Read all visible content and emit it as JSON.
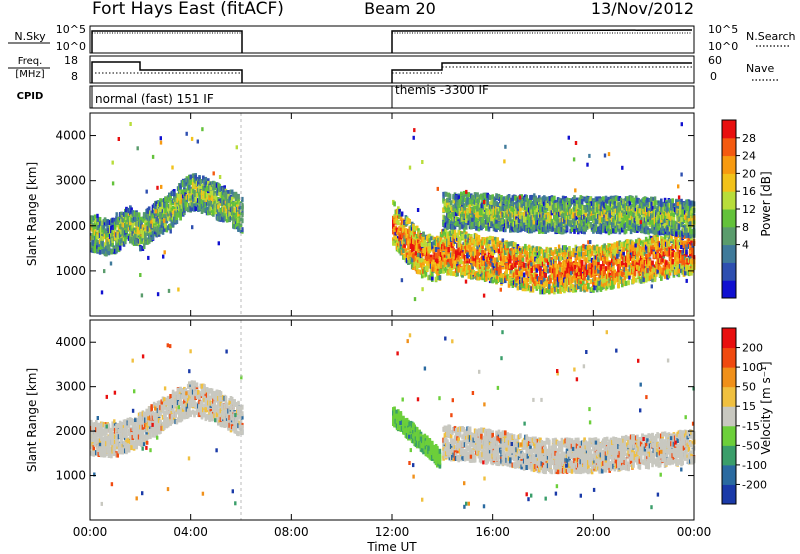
{
  "header": {
    "station": "Fort Hays East (fitACF)",
    "beam": "Beam 20",
    "date": "13/Nov/2012"
  },
  "nsky_panel": {
    "left_label": "N.Sky",
    "right_label": "N.Search",
    "left_ticks": [
      "10^5",
      "10^0"
    ],
    "right_ticks": [
      "10^5",
      "10^0"
    ]
  },
  "freq_panel": {
    "left_label_1": "Freq.",
    "left_label_2": "[MHz]",
    "right_label": "Nave",
    "left_ticks": [
      "18",
      "8"
    ],
    "right_ticks": [
      "60",
      "0"
    ]
  },
  "cpid_panel": {
    "label": "CPID",
    "modes": [
      "normal (fast) 151 IF",
      "themis -3300 IF"
    ]
  },
  "time_axis": {
    "title": "Time UT",
    "ticks": [
      "00:00",
      "04:00",
      "08:00",
      "12:00",
      "16:00",
      "20:00",
      "00:00"
    ]
  },
  "power_colorbar": {
    "title": "Power [dB]",
    "ticks": [
      "28",
      "24",
      "20",
      "16",
      "12",
      "8",
      "4"
    ],
    "colors": [
      "#1010d0",
      "#2e4fb0",
      "#3f7a9a",
      "#5a9c6c",
      "#63c23a",
      "#b8dd3a",
      "#f2c21a",
      "#f79a10",
      "#f45a10",
      "#e80f0f"
    ]
  },
  "velocity_colorbar": {
    "title": "Velocity [m s⁻¹]",
    "ticks": [
      "200",
      "100",
      "50",
      "15",
      "-15",
      "-50",
      "-100",
      "-200"
    ],
    "colors": [
      "#1a3aa8",
      "#2a6aa0",
      "#3a9e6a",
      "#6ccf3a",
      "#c8c8c0",
      "#f0c040",
      "#f0901a",
      "#f04a10",
      "#e80f0f"
    ]
  },
  "chart_data": [
    {
      "type": "heatmap",
      "name": "power",
      "ylabel": "Slant Range [km]",
      "xlabel": "Time UT",
      "xlim": [
        0,
        24
      ],
      "ylim": [
        0,
        4500
      ],
      "yticks": [
        1000,
        2000,
        3000,
        4000
      ],
      "xticks": [
        0,
        4,
        8,
        12,
        16,
        20,
        24
      ],
      "gaps": [
        [
          6.0,
          12.0
        ]
      ],
      "bands": [
        {
          "t": [
            0.0,
            0.6,
            1.0,
            1.5,
            2.0,
            2.6,
            3.2,
            3.8,
            4.2,
            4.8,
            5.4,
            6.0
          ],
          "r": [
            1900,
            1800,
            1850,
            2100,
            1900,
            2200,
            2400,
            2750,
            2800,
            2650,
            2500,
            2300
          ],
          "level": "mid"
        },
        {
          "t": [
            12.0,
            12.6,
            13.2,
            13.8,
            14.0,
            15.0,
            16.0,
            17.0,
            18.0,
            19.0,
            20.0,
            21.0,
            22.0,
            23.0,
            24.0
          ],
          "r": [
            2100,
            1700,
            1400,
            1300,
            1500,
            1400,
            1300,
            1150,
            1050,
            1100,
            1100,
            1200,
            1300,
            1400,
            1500
          ],
          "level": "high"
        },
        {
          "t": [
            14.0,
            16.0,
            18.0,
            20.0,
            22.0,
            24.0
          ],
          "r": [
            2400,
            2350,
            2300,
            2300,
            2300,
            2200
          ],
          "level": "mid"
        }
      ]
    },
    {
      "type": "heatmap",
      "name": "velocity",
      "ylabel": "Slant Range [km]",
      "xlabel": "Time UT",
      "xlim": [
        0,
        24
      ],
      "ylim": [
        0,
        4500
      ],
      "yticks": [
        1000,
        2000,
        3000,
        4000
      ],
      "xticks": [
        0,
        4,
        8,
        12,
        16,
        20,
        24
      ],
      "gaps": [
        [
          6.0,
          12.0
        ]
      ],
      "bands": [
        {
          "t": [
            0.0,
            1.0,
            2.0,
            3.0,
            4.0,
            5.0,
            6.0
          ],
          "r": [
            1900,
            1850,
            2100,
            2500,
            2800,
            2600,
            2300
          ],
          "level": "ground"
        },
        {
          "t": [
            12.0,
            13.0,
            13.9
          ],
          "r": [
            2400,
            1900,
            1400
          ],
          "level": "positive"
        },
        {
          "t": [
            14.0,
            16.0,
            18.0,
            20.0,
            22.0,
            24.0
          ],
          "r": [
            1800,
            1700,
            1500,
            1500,
            1600,
            1700
          ],
          "level": "ground"
        }
      ]
    }
  ]
}
